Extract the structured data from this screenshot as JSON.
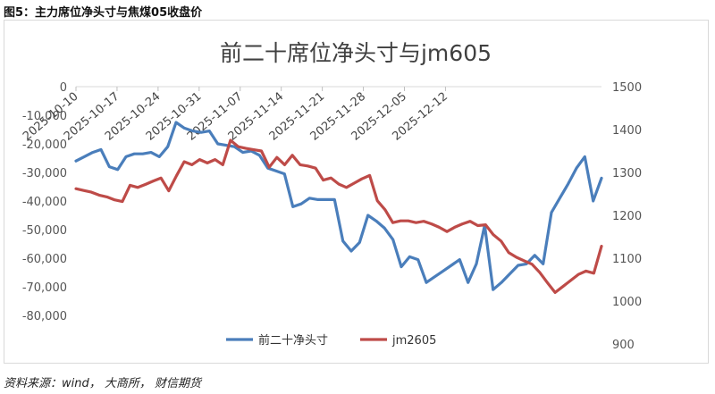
{
  "figure_caption": "图5：主力席位净头寸与焦煤05收盘价",
  "source_note": "资料来源：wind， 大商所， 财信期货",
  "colors": {
    "series1": "#4a7ebb",
    "series2": "#be4b48",
    "axis": "#d9d9d9"
  },
  "chart_data": {
    "type": "line",
    "title": "前二十席位净头寸与jm605",
    "legend_position": "bottom",
    "grid": false,
    "y_left": {
      "range": [
        -90000,
        0
      ],
      "ticks": [
        "0",
        "-10,000",
        "-20,000",
        "-30,000",
        "-40,000",
        "-50,000",
        "-60,000",
        "-70,000",
        "-80,000"
      ],
      "tick_values": [
        0,
        -10000,
        -20000,
        -30000,
        -40000,
        -50000,
        -60000,
        -70000,
        -80000
      ]
    },
    "y_right": {
      "range": [
        900,
        1500
      ],
      "ticks": [
        "1500",
        "1400",
        "1300",
        "1200",
        "1100",
        "1000",
        "900"
      ],
      "tick_values": [
        1500,
        1400,
        1300,
        1200,
        1100,
        1000,
        900
      ]
    },
    "x_ticks": [
      "2025-10-10",
      "2025-10-17",
      "2025-10-24",
      "2025-10-31",
      "2025-11-07",
      "2025-11-14",
      "2025-11-21",
      "2025-11-28",
      "2025-12-05",
      "2025-12-12"
    ],
    "x_tick_index": [
      0,
      5,
      10,
      15,
      20,
      25,
      30,
      35,
      40,
      45
    ],
    "series": [
      {
        "name": "前二十净头寸",
        "axis": "left",
        "values": [
          -26000,
          -24500,
          -23000,
          -22000,
          -28000,
          -29000,
          -24500,
          -23500,
          -23500,
          -23000,
          -24500,
          -21000,
          -12500,
          -14500,
          -15500,
          -16000,
          -15500,
          -20000,
          -20500,
          -21000,
          -23000,
          -22500,
          -24000,
          -28500,
          -29500,
          -30500,
          -42000,
          -41000,
          -39000,
          -39500,
          -39500,
          -39500,
          -54000,
          -57500,
          -54500,
          -45000,
          -47000,
          -49500,
          -53500,
          -63000,
          -59500,
          -60500,
          -68500,
          -66500,
          -64500,
          -62500,
          -60500,
          -68500,
          -62000,
          -48500,
          -71000,
          -68500,
          -65500,
          -62500,
          -62000,
          -59000,
          -62000,
          -44000,
          -39000,
          -34000,
          -28500,
          -24500,
          -40000,
          -32000
        ]
      },
      {
        "name": "jm2605",
        "axis": "right",
        "values": [
          1262,
          1258,
          1254,
          1247,
          1243,
          1236,
          1232,
          1270,
          1265,
          1272,
          1280,
          1287,
          1257,
          1292,
          1325,
          1318,
          1330,
          1322,
          1330,
          1318,
          1375,
          1360,
          1356,
          1353,
          1350,
          1312,
          1335,
          1318,
          1340,
          1318,
          1315,
          1310,
          1282,
          1287,
          1273,
          1265,
          1275,
          1285,
          1293,
          1234,
          1213,
          1183,
          1187,
          1187,
          1183,
          1186,
          1180,
          1172,
          1162,
          1172,
          1180,
          1186,
          1176,
          1178,
          1155,
          1140,
          1113,
          1102,
          1094,
          1086,
          1067,
          1043,
          1020,
          1034,
          1048,
          1062,
          1070,
          1065,
          1128
        ]
      }
    ]
  }
}
